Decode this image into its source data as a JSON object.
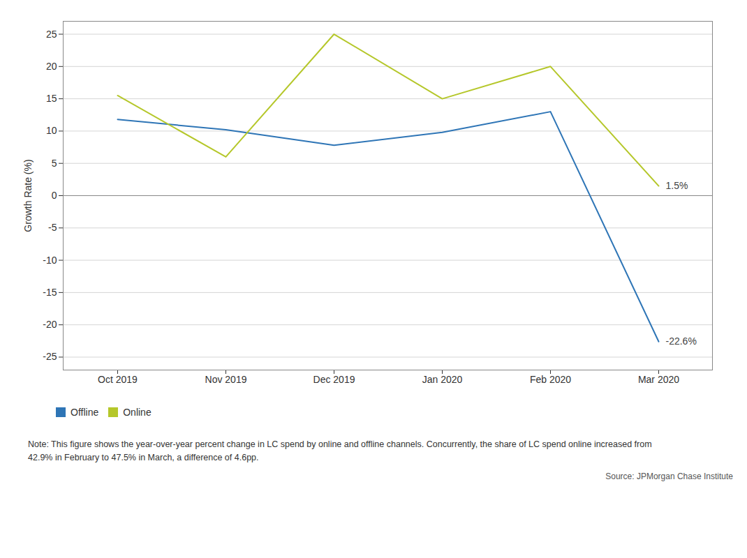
{
  "chart_data": {
    "type": "line",
    "categories": [
      "Oct 2019",
      "Nov 2019",
      "Dec 2019",
      "Jan 2020",
      "Feb 2020",
      "Mar 2020"
    ],
    "series": [
      {
        "name": "Offline",
        "color": "#2e75b6",
        "values": [
          11.8,
          10.2,
          7.8,
          9.8,
          13.0,
          -22.6
        ],
        "value_labels": [
          null,
          null,
          null,
          null,
          null,
          "-22.6%"
        ]
      },
      {
        "name": "Online",
        "color": "#b5c72a",
        "values": [
          15.5,
          6.0,
          25.0,
          15.0,
          20.0,
          1.5
        ],
        "value_labels": [
          null,
          null,
          null,
          null,
          null,
          "1.5%"
        ]
      }
    ],
    "ylabel": "Growth Rate (%)",
    "ylim": [
      -27,
      27
    ],
    "yticks": [
      -25,
      -20,
      -15,
      -10,
      -5,
      0,
      5,
      10,
      15,
      20,
      25
    ],
    "grid": true,
    "legend": "bottom",
    "note": "Note: This figure shows the year-over-year percent change in LC spend by online and offline channels. Concurrently, the share of LC spend online increased from\n42.9% in February to 47.5% in March, a difference of 4.6pp.",
    "source": "Source: JPMorgan Chase Institute"
  }
}
